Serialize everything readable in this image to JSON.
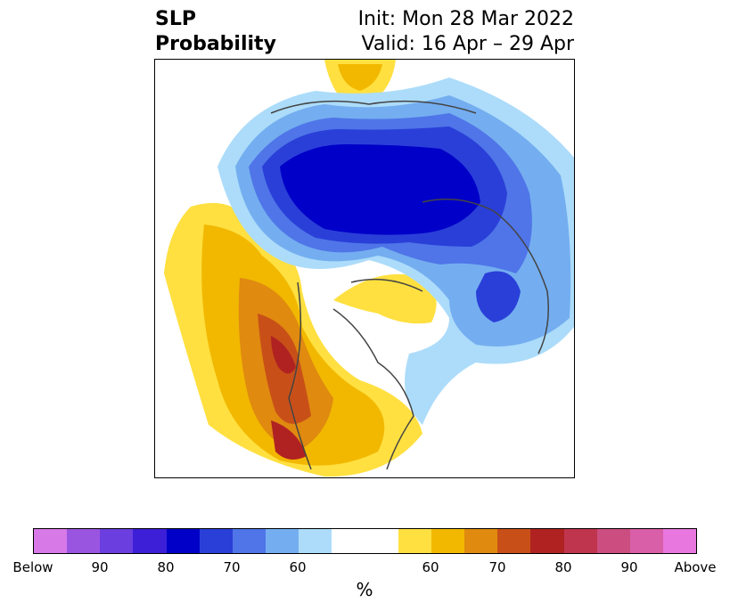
{
  "header": {
    "title_line1": "SLP",
    "title_line2": "Probability",
    "init_label": "Init: Mon 28 Mar 2022",
    "valid_label": "Valid: 16 Apr – 29 Apr"
  },
  "map": {
    "region_colors": {
      "below_strong": "#0000c8",
      "below_mid": "#2a3fd8",
      "below_light": "#4f75e8",
      "below_lighter": "#74aef0",
      "below_faint": "#acdcfa",
      "above_faint": "#ffe040",
      "above_light": "#f2b800",
      "above_mid": "#e08a10",
      "above_strong": "#c85018",
      "above_max": "#b02222"
    }
  },
  "colorbar": {
    "colors": [
      "#d77ae8",
      "#9a55e0",
      "#6b3ee0",
      "#3d1fd8",
      "#0000c8",
      "#2a3fd8",
      "#4f75e8",
      "#74aef0",
      "#acdcfa",
      "#ffffff",
      "#ffffff",
      "#ffe040",
      "#f2b800",
      "#e08a10",
      "#c85018",
      "#b02222",
      "#c0354e",
      "#cc4e80",
      "#d95fa8",
      "#e877e0"
    ],
    "tick_labels": [
      "Below",
      "90",
      "80",
      "70",
      "60",
      "60",
      "70",
      "80",
      "90",
      "Above"
    ],
    "unit_label": "%"
  }
}
